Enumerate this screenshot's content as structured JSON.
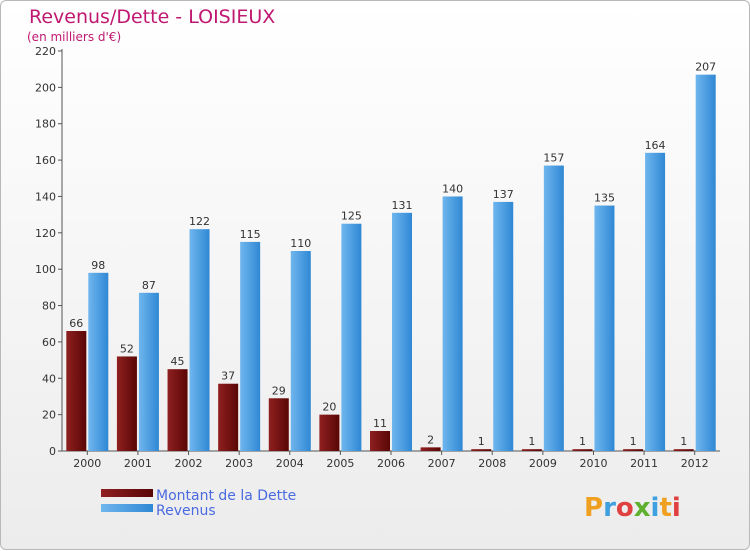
{
  "chart_data": {
    "type": "bar",
    "title": "Revenus/Dette - LOISIEUX",
    "subtitle": "(en milliers d'€)",
    "categories": [
      "2000",
      "2001",
      "2002",
      "2003",
      "2004",
      "2005",
      "2006",
      "2007",
      "2008",
      "2009",
      "2010",
      "2011",
      "2012"
    ],
    "series": [
      {
        "name": "Montant de la Dette",
        "color": "#7a1010",
        "values": [
          66,
          52,
          45,
          37,
          29,
          20,
          11,
          2,
          1,
          1,
          1,
          1,
          1
        ]
      },
      {
        "name": "Revenus",
        "color": "#3f98e0",
        "values": [
          98,
          87,
          122,
          115,
          110,
          125,
          131,
          140,
          137,
          157,
          135,
          164,
          207
        ]
      }
    ],
    "ylim": [
      0,
      220
    ],
    "yticks": [
      0,
      20,
      40,
      60,
      80,
      100,
      120,
      140,
      160,
      180,
      200,
      220
    ],
    "grid": false,
    "legend": "bottom-left"
  },
  "logo": {
    "letters": [
      "P",
      "r",
      "o",
      "x",
      "i",
      "t",
      "i"
    ],
    "colors": [
      "#f0a020",
      "#3fa0e0",
      "#e04040",
      "#60b030",
      "#3fa0e0",
      "#f0a020",
      "#e04040"
    ]
  }
}
